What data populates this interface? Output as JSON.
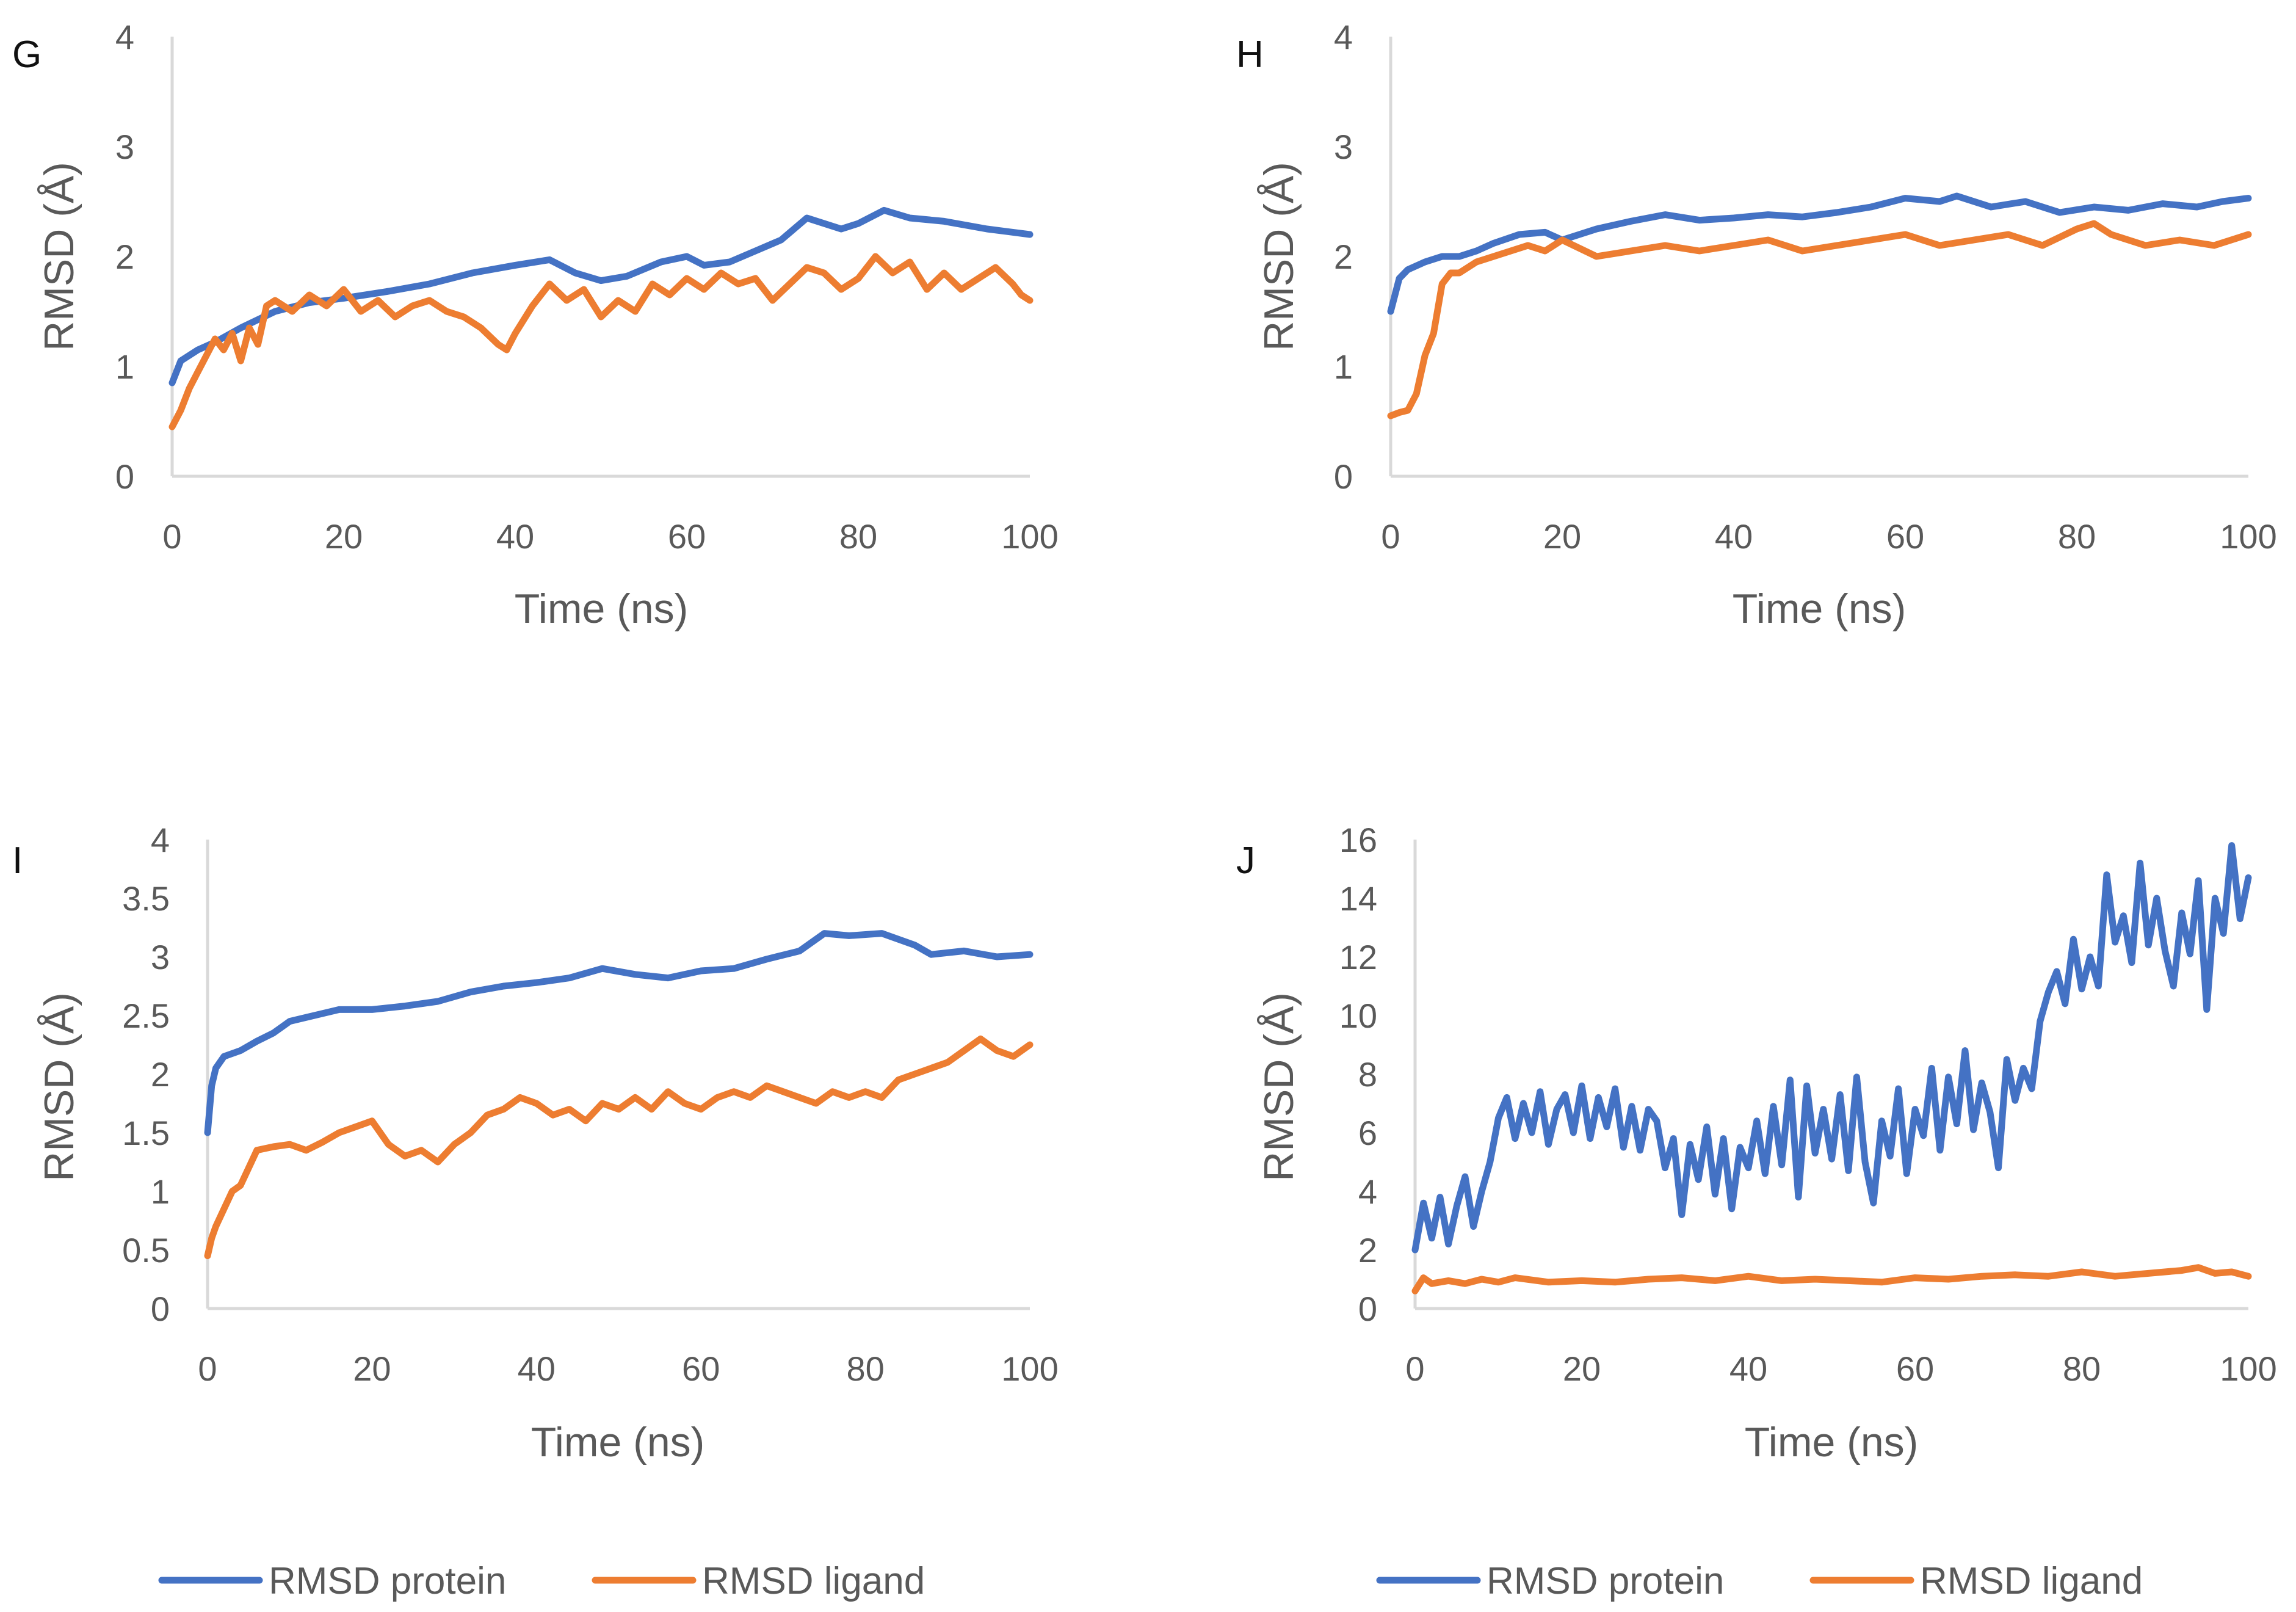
{
  "chart_data": [
    {
      "type": "line",
      "panel_label": "G",
      "title": "",
      "xlabel": "Time (ns)",
      "ylabel": "RMSD (Å)",
      "xlim": [
        0,
        100
      ],
      "ylim": [
        0,
        4
      ],
      "xticks": [
        0,
        20,
        40,
        60,
        80,
        100
      ],
      "yticks": [
        0,
        1,
        2,
        3,
        4
      ],
      "ytick_labels": [
        "0",
        "1",
        "2",
        "3",
        "4"
      ],
      "grid": false,
      "series": [
        {
          "name": "RMSD protein",
          "color": "#4472c4",
          "x": [
            0,
            1,
            3,
            5,
            8,
            12,
            16,
            20,
            25,
            30,
            35,
            40,
            44,
            47,
            50,
            53,
            57,
            60,
            62,
            65,
            68,
            71,
            74,
            76,
            78,
            80,
            83,
            86,
            90,
            95,
            100
          ],
          "y": [
            0.85,
            1.05,
            1.15,
            1.22,
            1.35,
            1.5,
            1.58,
            1.62,
            1.68,
            1.75,
            1.85,
            1.92,
            1.97,
            1.85,
            1.78,
            1.82,
            1.95,
            2.0,
            1.92,
            1.95,
            2.05,
            2.15,
            2.35,
            2.3,
            2.25,
            2.3,
            2.42,
            2.35,
            2.32,
            2.25,
            2.2
          ]
        },
        {
          "name": "RMSD ligand",
          "color": "#ed7d31",
          "x": [
            0,
            1,
            2,
            3,
            4,
            5,
            6,
            7,
            8,
            9,
            10,
            11,
            12,
            14,
            16,
            18,
            20,
            22,
            24,
            26,
            28,
            30,
            32,
            34,
            36,
            38,
            39,
            40,
            42,
            44,
            46,
            48,
            50,
            52,
            54,
            56,
            58,
            60,
            62,
            64,
            66,
            68,
            70,
            72,
            74,
            76,
            78,
            80,
            82,
            84,
            86,
            88,
            90,
            92,
            94,
            96,
            98,
            99,
            100
          ],
          "y": [
            0.45,
            0.6,
            0.8,
            0.95,
            1.1,
            1.25,
            1.15,
            1.3,
            1.05,
            1.35,
            1.2,
            1.55,
            1.6,
            1.5,
            1.65,
            1.55,
            1.7,
            1.5,
            1.6,
            1.45,
            1.55,
            1.6,
            1.5,
            1.45,
            1.35,
            1.2,
            1.15,
            1.3,
            1.55,
            1.75,
            1.6,
            1.7,
            1.45,
            1.6,
            1.5,
            1.75,
            1.65,
            1.8,
            1.7,
            1.85,
            1.75,
            1.8,
            1.6,
            1.75,
            1.9,
            1.85,
            1.7,
            1.8,
            2.0,
            1.85,
            1.95,
            1.7,
            1.85,
            1.7,
            1.8,
            1.9,
            1.75,
            1.65,
            1.6
          ]
        }
      ]
    },
    {
      "type": "line",
      "panel_label": "H",
      "title": "",
      "xlabel": "Time (ns)",
      "ylabel": "RMSD (Å)",
      "xlim": [
        0,
        100
      ],
      "ylim": [
        0,
        4
      ],
      "xticks": [
        0,
        20,
        40,
        60,
        80,
        100
      ],
      "yticks": [
        0,
        1,
        2,
        3,
        4
      ],
      "ytick_labels": [
        "0",
        "1",
        "2",
        "3",
        "4"
      ],
      "grid": false,
      "series": [
        {
          "name": "RMSD protein",
          "color": "#4472c4",
          "x": [
            0,
            1,
            2,
            4,
            6,
            8,
            10,
            12,
            15,
            18,
            20,
            24,
            28,
            32,
            36,
            40,
            44,
            48,
            52,
            56,
            60,
            64,
            66,
            70,
            74,
            78,
            82,
            86,
            90,
            94,
            97,
            100
          ],
          "y": [
            1.5,
            1.8,
            1.88,
            1.95,
            2.0,
            2.0,
            2.05,
            2.12,
            2.2,
            2.22,
            2.15,
            2.25,
            2.32,
            2.38,
            2.33,
            2.35,
            2.38,
            2.36,
            2.4,
            2.45,
            2.53,
            2.5,
            2.55,
            2.45,
            2.5,
            2.4,
            2.45,
            2.42,
            2.48,
            2.45,
            2.5,
            2.53
          ]
        },
        {
          "name": "RMSD ligand",
          "color": "#ed7d31",
          "x": [
            0,
            1,
            2,
            3,
            4,
            5,
            6,
            7,
            8,
            10,
            12,
            14,
            16,
            18,
            20,
            24,
            28,
            32,
            36,
            40,
            44,
            48,
            52,
            56,
            60,
            64,
            68,
            72,
            76,
            80,
            82,
            84,
            88,
            92,
            96,
            100
          ],
          "y": [
            0.55,
            0.58,
            0.6,
            0.75,
            1.1,
            1.3,
            1.75,
            1.85,
            1.85,
            1.95,
            2.0,
            2.05,
            2.1,
            2.05,
            2.15,
            2.0,
            2.05,
            2.1,
            2.05,
            2.1,
            2.15,
            2.05,
            2.1,
            2.15,
            2.2,
            2.1,
            2.15,
            2.2,
            2.1,
            2.25,
            2.3,
            2.2,
            2.1,
            2.15,
            2.1,
            2.2
          ]
        }
      ]
    },
    {
      "type": "line",
      "panel_label": "I",
      "title": "",
      "xlabel": "Time (ns)",
      "ylabel": "RMSD (Å)",
      "xlim": [
        0,
        100
      ],
      "ylim": [
        0,
        4
      ],
      "xticks": [
        0,
        20,
        40,
        60,
        80,
        100
      ],
      "yticks": [
        0,
        0.5,
        1,
        1.5,
        2,
        2.5,
        3,
        3.5,
        4
      ],
      "ytick_labels": [
        "0",
        "0.5",
        "1",
        "1.5",
        "2",
        "2.5",
        "3",
        "3.5",
        "4"
      ],
      "grid": false,
      "series": [
        {
          "name": "RMSD protein",
          "color": "#4472c4",
          "x": [
            0,
            0.5,
            1,
            2,
            4,
            6,
            8,
            10,
            13,
            16,
            20,
            24,
            28,
            32,
            36,
            40,
            44,
            48,
            52,
            56,
            60,
            64,
            68,
            72,
            75,
            78,
            82,
            86,
            88,
            92,
            96,
            100
          ],
          "y": [
            1.5,
            1.9,
            2.05,
            2.15,
            2.2,
            2.28,
            2.35,
            2.45,
            2.5,
            2.55,
            2.55,
            2.58,
            2.62,
            2.7,
            2.75,
            2.78,
            2.82,
            2.9,
            2.85,
            2.82,
            2.88,
            2.9,
            2.98,
            3.05,
            3.2,
            3.18,
            3.2,
            3.1,
            3.02,
            3.05,
            3.0,
            3.02
          ]
        },
        {
          "name": "RMSD ligand",
          "color": "#ed7d31",
          "x": [
            0,
            0.5,
            1,
            2,
            3,
            4,
            5,
            6,
            8,
            10,
            12,
            14,
            16,
            18,
            20,
            22,
            24,
            26,
            28,
            30,
            32,
            34,
            36,
            38,
            40,
            42,
            44,
            46,
            48,
            50,
            52,
            54,
            56,
            58,
            60,
            62,
            64,
            66,
            68,
            70,
            72,
            74,
            76,
            78,
            80,
            82,
            84,
            86,
            88,
            90,
            92,
            94,
            96,
            98,
            100
          ],
          "y": [
            0.45,
            0.6,
            0.7,
            0.85,
            1.0,
            1.05,
            1.2,
            1.35,
            1.38,
            1.4,
            1.35,
            1.42,
            1.5,
            1.55,
            1.6,
            1.4,
            1.3,
            1.35,
            1.25,
            1.4,
            1.5,
            1.65,
            1.7,
            1.8,
            1.75,
            1.65,
            1.7,
            1.6,
            1.75,
            1.7,
            1.8,
            1.7,
            1.85,
            1.75,
            1.7,
            1.8,
            1.85,
            1.8,
            1.9,
            1.85,
            1.8,
            1.75,
            1.85,
            1.8,
            1.85,
            1.8,
            1.95,
            2.0,
            2.05,
            2.1,
            2.2,
            2.3,
            2.2,
            2.15,
            2.25
          ]
        }
      ]
    },
    {
      "type": "line",
      "panel_label": "J",
      "title": "",
      "xlabel": "Time (ns)",
      "ylabel": "RMSD (Å)",
      "xlim": [
        0,
        100
      ],
      "ylim": [
        0,
        16
      ],
      "xticks": [
        0,
        20,
        40,
        60,
        80,
        100
      ],
      "yticks": [
        0,
        2,
        4,
        6,
        8,
        10,
        12,
        14,
        16
      ],
      "ytick_labels": [
        "0",
        "2",
        "4",
        "6",
        "8",
        "10",
        "12",
        "14",
        "16"
      ],
      "grid": false,
      "series": [
        {
          "name": "RMSD protein",
          "color": "#4472c4",
          "x": [
            0,
            1,
            2,
            3,
            4,
            5,
            6,
            7,
            8,
            9,
            10,
            11,
            12,
            13,
            14,
            15,
            16,
            17,
            18,
            19,
            20,
            21,
            22,
            23,
            24,
            25,
            26,
            27,
            28,
            29,
            30,
            31,
            32,
            33,
            34,
            35,
            36,
            37,
            38,
            39,
            40,
            41,
            42,
            43,
            44,
            45,
            46,
            47,
            48,
            49,
            50,
            51,
            52,
            53,
            54,
            55,
            56,
            57,
            58,
            59,
            60,
            61,
            62,
            63,
            64,
            65,
            66,
            67,
            68,
            69,
            70,
            71,
            72,
            73,
            74,
            75,
            76,
            77,
            78,
            79,
            80,
            81,
            82,
            83,
            84,
            85,
            86,
            87,
            88,
            89,
            90,
            91,
            92,
            93,
            94,
            95,
            96,
            97,
            98,
            99,
            100
          ],
          "y": [
            2.0,
            3.6,
            2.4,
            3.8,
            2.2,
            3.5,
            4.5,
            2.8,
            4.0,
            5.0,
            6.5,
            7.2,
            5.8,
            7.0,
            6.0,
            7.4,
            5.6,
            6.8,
            7.3,
            6.0,
            7.6,
            5.8,
            7.2,
            6.2,
            7.5,
            5.5,
            6.9,
            5.4,
            6.8,
            6.4,
            4.8,
            5.8,
            3.2,
            5.6,
            4.4,
            6.2,
            3.9,
            5.8,
            3.4,
            5.5,
            4.8,
            6.4,
            4.6,
            6.9,
            4.9,
            7.8,
            3.8,
            7.6,
            5.3,
            6.8,
            5.1,
            7.3,
            4.7,
            7.9,
            5.0,
            3.6,
            6.4,
            5.2,
            7.5,
            4.6,
            6.8,
            5.9,
            8.2,
            5.4,
            7.9,
            6.3,
            8.8,
            6.1,
            7.7,
            6.7,
            4.8,
            8.5,
            7.1,
            8.2,
            7.5,
            9.8,
            10.8,
            11.5,
            10.4,
            12.6,
            10.9,
            12.0,
            11.0,
            14.8,
            12.5,
            13.4,
            11.8,
            15.2,
            12.4,
            14.0,
            12.2,
            11.0,
            13.5,
            12.1,
            14.6,
            10.2,
            14.0,
            12.8,
            15.8,
            13.3,
            14.7
          ]
        },
        {
          "name": "RMSD ligand",
          "color": "#ed7d31",
          "x": [
            0,
            1,
            2,
            4,
            6,
            8,
            10,
            12,
            16,
            20,
            24,
            28,
            32,
            36,
            40,
            44,
            48,
            52,
            56,
            60,
            64,
            68,
            72,
            76,
            80,
            84,
            88,
            92,
            94,
            96,
            98,
            100
          ],
          "y": [
            0.6,
            1.05,
            0.85,
            0.95,
            0.85,
            1.0,
            0.9,
            1.05,
            0.9,
            0.95,
            0.9,
            1.0,
            1.05,
            0.95,
            1.1,
            0.95,
            1.0,
            0.95,
            0.9,
            1.05,
            1.0,
            1.1,
            1.15,
            1.1,
            1.25,
            1.1,
            1.2,
            1.3,
            1.4,
            1.2,
            1.25,
            1.1
          ]
        }
      ]
    }
  ],
  "legends": [
    {
      "protein_label": "RMSD protein",
      "ligand_label": "RMSD ligand"
    },
    {
      "protein_label": "RMSD protein",
      "ligand_label": "RMSD ligand"
    }
  ]
}
